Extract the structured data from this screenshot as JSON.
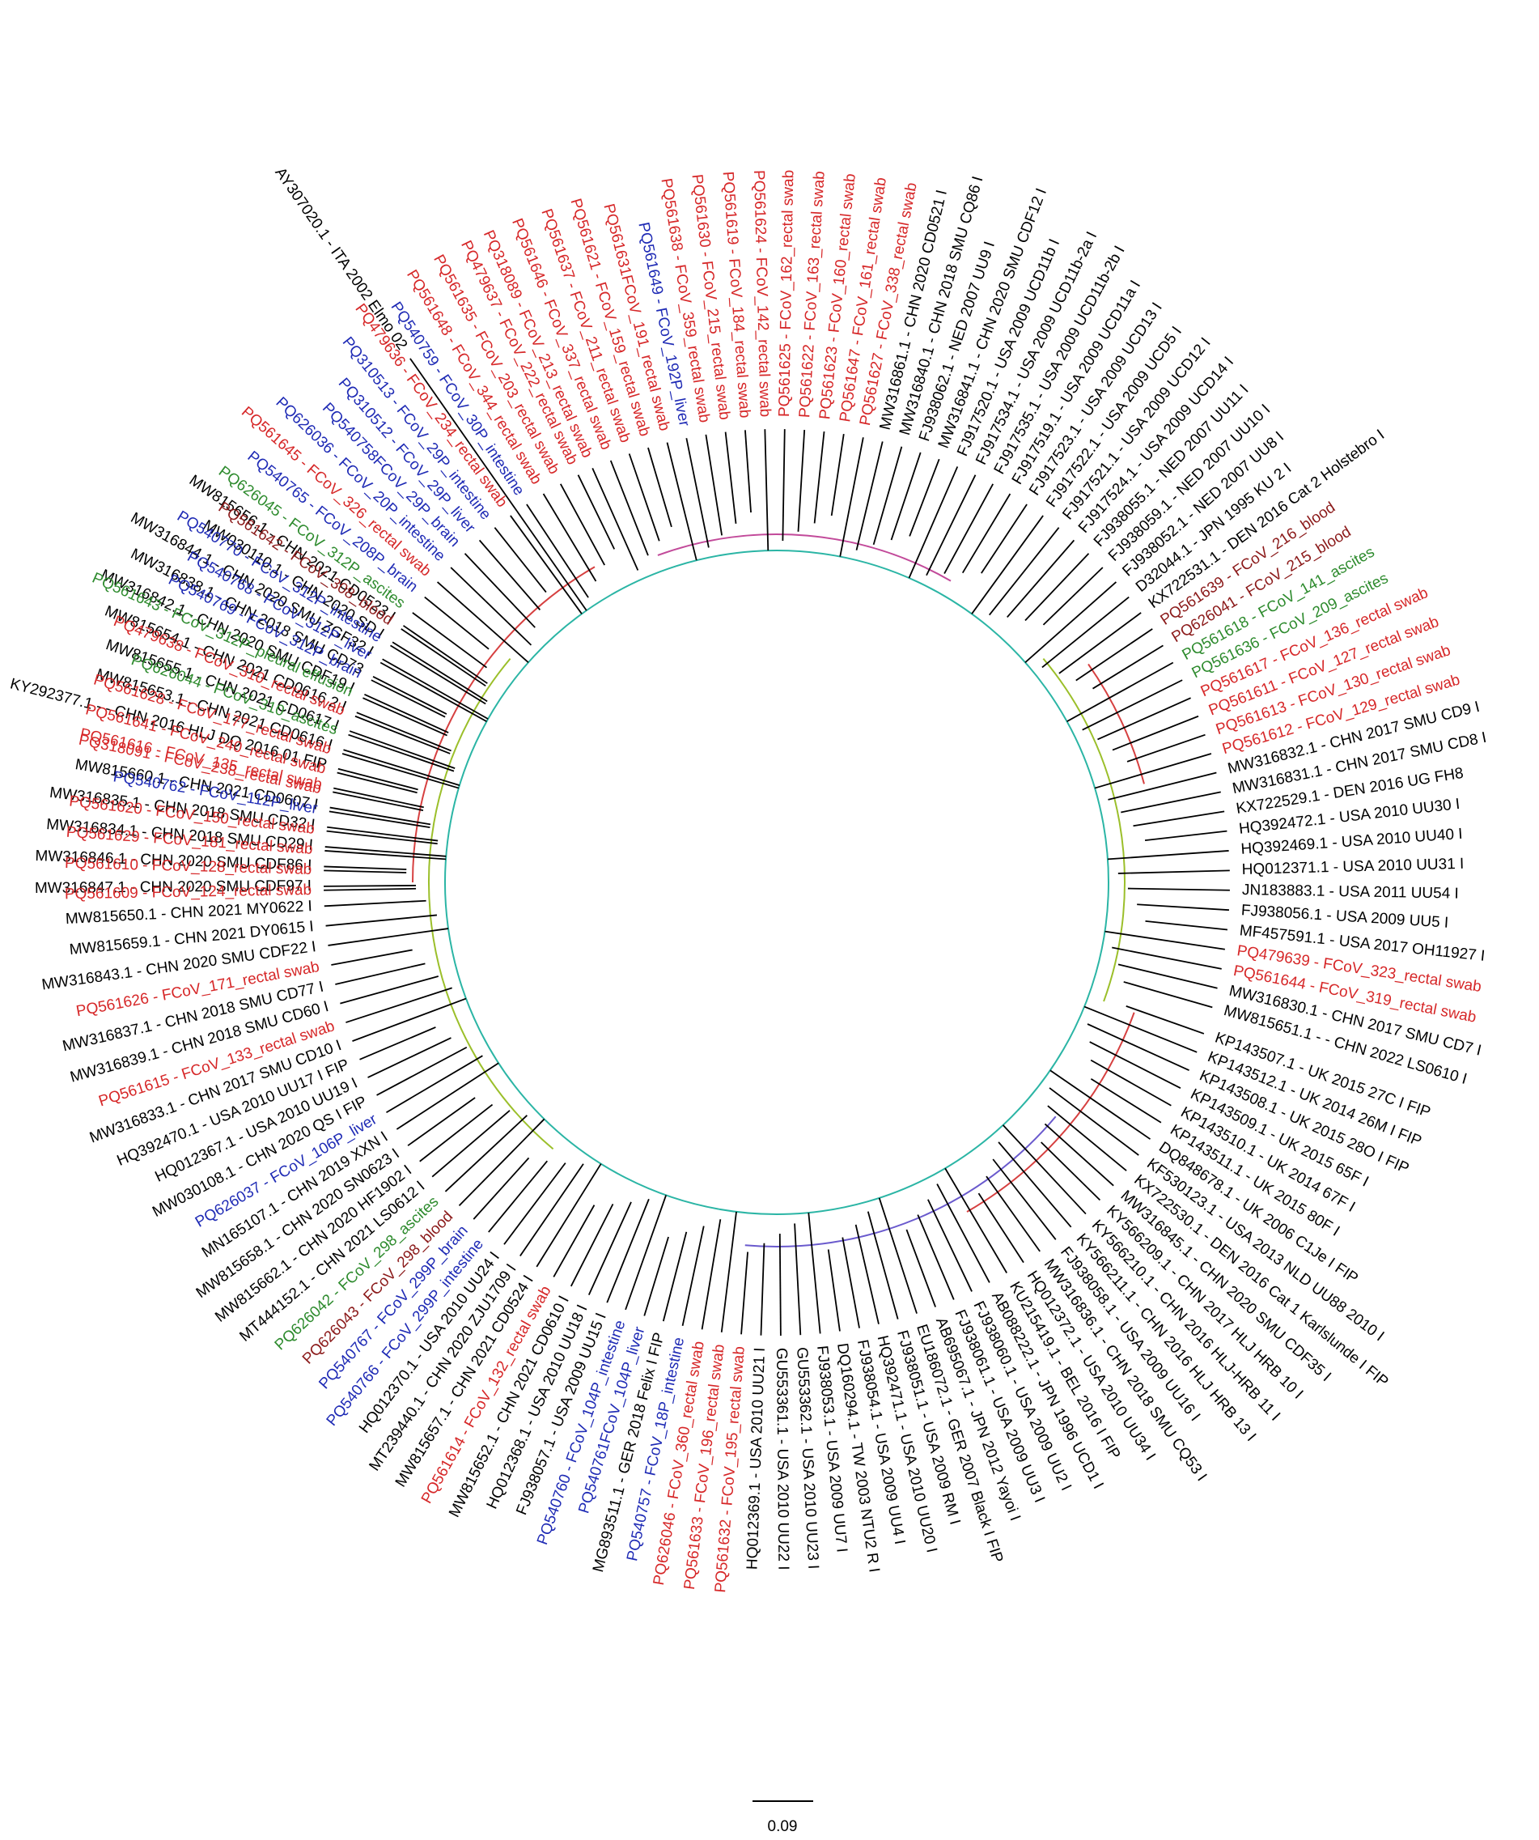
{
  "colors": {
    "rectal_swab": "#d62728",
    "organ": "#1f2bb5",
    "effusion": "#2e8b2e",
    "blood": "#8b1a1a",
    "reference": "#000000"
  },
  "scale_bar": {
    "label": "0.09"
  },
  "leaves": [
    {
      "label": "AY307020.1 - ITA 2002 Elmo 02",
      "group": "reference",
      "angle": -125
    },
    {
      "label": "PQ318089 - FCoV_213_rectal swab",
      "group": "rectal_swab",
      "angle": -114
    },
    {
      "label": "PQ561646 - FCoV_337_rectal swab",
      "group": "rectal_swab",
      "angle": -111.5
    },
    {
      "label": "PQ561637 - FCoV_211_rectal swab",
      "group": "rectal_swab",
      "angle": -109
    },
    {
      "label": "PQ561621 - FCoV_159_rectal swab",
      "group": "rectal_swab",
      "angle": -106.5
    },
    {
      "label": "PQ561631FCoV_191_rectal swab",
      "group": "rectal_swab",
      "angle": -104
    },
    {
      "label": "PQ561649 - FCoV_192P_liver",
      "group": "organ",
      "angle": -101.5
    },
    {
      "label": "PQ561638 - FCoV_359_rectal swab",
      "group": "rectal_swab",
      "angle": -99
    },
    {
      "label": "PQ561630 - FCoV_215_rectal swab",
      "group": "rectal_swab",
      "angle": -96.5
    },
    {
      "label": "PQ561619 - FCoV_184_rectal swab",
      "group": "rectal_swab",
      "angle": -94
    },
    {
      "label": "PQ561624 - FCoV_142_rectal swab",
      "group": "rectal_swab",
      "angle": -91.5
    },
    {
      "label": "PQ561625 - FCoV_162_rectal swab",
      "group": "rectal_swab",
      "angle": -89
    },
    {
      "label": "PQ561622 - FCoV_163_rectal swab",
      "group": "rectal_swab",
      "angle": -86.5
    },
    {
      "label": "PQ561623 - FCoV_160_rectal swab",
      "group": "rectal_swab",
      "angle": -84
    },
    {
      "label": "PQ561647 - FCoV_161_rectal swab",
      "group": "rectal_swab",
      "angle": -81.5
    },
    {
      "label": "PQ561627 - FCoV_338_rectal swab",
      "group": "rectal_swab",
      "angle": -79
    },
    {
      "label": "MW316861.1 - CHN 2020 CD0521 I",
      "group": "reference",
      "angle": -76.5
    },
    {
      "label": "MW316840.1 - CHN 2018 SMU CQ86 I",
      "group": "reference",
      "angle": -74
    },
    {
      "label": "FJ938062.1 - NED 2007 UU9 I",
      "group": "reference",
      "angle": -71.5
    },
    {
      "label": "MW316841.1 - CHN 2020 SMU CDF12 I",
      "group": "reference",
      "angle": -69
    },
    {
      "label": "FJ917520.1 - USA 2009 UCD11b I",
      "group": "reference",
      "angle": -66.5
    },
    {
      "label": "FJ917534.1 - USA 2009 UCD11b-2a I",
      "group": "reference",
      "angle": -64
    },
    {
      "label": "FJ917535.1 - USA 2009 UCD11b-2b I",
      "group": "reference",
      "angle": -61.5
    },
    {
      "label": "FJ917519.1 - USA 2009 UCD11a I",
      "group": "reference",
      "angle": -59
    },
    {
      "label": "FJ917523.1 - USA 2009 UCD13 I",
      "group": "reference",
      "angle": -56.5
    },
    {
      "label": "FJ917522.1 - USA 2009 UCD5 I",
      "group": "reference",
      "angle": -54
    },
    {
      "label": "FJ917521.1 - USA 2009 UCD12 I",
      "group": "reference",
      "angle": -51.5
    },
    {
      "label": "FJ917524.1 - USA 2009 UCD14 I",
      "group": "reference",
      "angle": -49
    },
    {
      "label": "FJ938055.1 - NED 2007 UU11 I",
      "group": "reference",
      "angle": -46.5
    },
    {
      "label": "FJ938059.1 - NED 2007 UU10 I",
      "group": "reference",
      "angle": -44
    },
    {
      "label": "FJ938052.1 - NED 2007 UU8 I",
      "group": "reference",
      "angle": -41.5
    },
    {
      "label": "D32044.1 - JPN 1995 KU 2 I",
      "group": "reference",
      "angle": -39
    },
    {
      "label": "KX722531.1 - DEN 2016 Cat 2 Holstebro I",
      "group": "reference",
      "angle": -36.5
    },
    {
      "label": "PQ561639 - FCoV_216_blood",
      "group": "blood",
      "angle": -34
    },
    {
      "label": "PQ626041 - FCoV_215_blood",
      "group": "blood",
      "angle": -31.5
    },
    {
      "label": "PQ561618 - FCoV_141_ascites",
      "group": "effusion",
      "angle": -29
    },
    {
      "label": "PQ561636 - FCoV_209_ascites",
      "group": "effusion",
      "angle": -26.5
    },
    {
      "label": "PQ561617 - FCoV_136_rectal swab",
      "group": "rectal_swab",
      "angle": -24
    },
    {
      "label": "PQ561611 - FCoV_127_rectal swab",
      "group": "rectal_swab",
      "angle": -21.5
    },
    {
      "label": "PQ561613 - FCoV_130_rectal swab",
      "group": "rectal_swab",
      "angle": -19
    },
    {
      "label": "PQ561612 - FCoV_129_rectal swab",
      "group": "rectal_swab",
      "angle": -16.5
    },
    {
      "label": "MW316832.1 - CHN 2017 SMU CD9 I",
      "group": "reference",
      "angle": -14
    },
    {
      "label": "MW316831.1 - CHN 2017 SMU CD8 I",
      "group": "reference",
      "angle": -11.5
    },
    {
      "label": "KX722529.1 - DEN 2016 UG FH8",
      "group": "reference",
      "angle": -9
    },
    {
      "label": "HQ392472.1 - USA 2010 UU30 I",
      "group": "reference",
      "angle": -6.5
    },
    {
      "label": "HQ392469.1 - USA 2010 UU40 I",
      "group": "reference",
      "angle": -4
    },
    {
      "label": "HQ012371.1 - USA 2010 UU31 I",
      "group": "reference",
      "angle": -1.5
    },
    {
      "label": "JN183883.1 - USA 2011 UU54 I",
      "group": "reference",
      "angle": 1
    },
    {
      "label": "FJ938056.1 - USA 2009 UU5 I",
      "group": "reference",
      "angle": 3.5
    },
    {
      "label": "MF457591.1 - USA 2017 OH11927 I",
      "group": "reference",
      "angle": 6
    },
    {
      "label": "PQ479639 - FCoV_323_rectal swab",
      "group": "rectal_swab",
      "angle": 8.5
    },
    {
      "label": "PQ561644 - FCoV_319_rectal swab",
      "group": "rectal_swab",
      "angle": 11
    },
    {
      "label": "MW316830.1 - CHN 2017 SMU CD7 I",
      "group": "reference",
      "angle": 13.5
    },
    {
      "label": "MW815651.1 - - CHN 2022 LS0610 I",
      "group": "reference",
      "angle": 16
    },
    {
      "label": "KP143507.1 - UK 2015 27C I FIP",
      "group": "reference",
      "angle": 19.5
    },
    {
      "label": "KP143512.1 - UK 2014 26M I FIP",
      "group": "reference",
      "angle": 22
    },
    {
      "label": "KP143508.1 - UK 2015 28O I FIP",
      "group": "reference",
      "angle": 24.5
    },
    {
      "label": "KP143509.1 - UK 2015 65F I",
      "group": "reference",
      "angle": 27
    },
    {
      "label": "KP143510.1 - UK 2014 67F I",
      "group": "reference",
      "angle": 29.5
    },
    {
      "label": "KP143511.1 - UK 2015 80F I",
      "group": "reference",
      "angle": 32
    },
    {
      "label": "DQ848678.1 - UK 2006 C1Je I FIP",
      "group": "reference",
      "angle": 34.5
    },
    {
      "label": "KF530123.1 - USA 2013 NLD UU88 2010 I",
      "group": "reference",
      "angle": 37
    },
    {
      "label": "KX722530.1 - DEN 2016 Cat 1 Karlslunde I FIP",
      "group": "reference",
      "angle": 39.5
    },
    {
      "label": "MW316845.1 - CHN 2020 SMU CDF35 I",
      "group": "reference",
      "angle": 42
    },
    {
      "label": "KY566209.1 - CHN 2017 HLJ HRB 10 I",
      "group": "reference",
      "angle": 44.5
    },
    {
      "label": "KY566210.1 - CHN 2016 HLJ-HRB 11 I",
      "group": "reference",
      "angle": 47
    },
    {
      "label": "KY566211.1 - CHN 2016 HLJ HRB 13 I",
      "group": "reference",
      "angle": 49.5
    },
    {
      "label": "FJ938058.1 - USA 2009 UU16 I",
      "group": "reference",
      "angle": 52
    },
    {
      "label": "MW316836.1 - CHN 2018 SMU CQ53 I",
      "group": "reference",
      "angle": 54.5
    },
    {
      "label": "HQ012372.1 - USA 2010 UU34 I",
      "group": "reference",
      "angle": 57
    },
    {
      "label": "KU215419.1 - BEL 2016 I FIP",
      "group": "reference",
      "angle": 59.5
    },
    {
      "label": "AB088222.1 - JPN 1996 UCD1 I",
      "group": "reference",
      "angle": 62
    },
    {
      "label": "FJ938060.1 - USA 2009 UU2 I",
      "group": "reference",
      "angle": 64.5
    },
    {
      "label": "FJ938061.1 - USA 2009 UU3 I",
      "group": "reference",
      "angle": 67
    },
    {
      "label": "AB695067.1 - JPN 2012 Yayoi I",
      "group": "reference",
      "angle": 69.5
    },
    {
      "label": "EU186072.1 - GER 2007 Black I FIP",
      "group": "reference",
      "angle": 72
    },
    {
      "label": "FJ938051.1 - USA 2009 RM I",
      "group": "reference",
      "angle": 74.5
    },
    {
      "label": "HQ392471.1 - USA 2010 UU20 I",
      "group": "reference",
      "angle": 77
    },
    {
      "label": "FJ938054.1 - USA 2009 UU4 I",
      "group": "reference",
      "angle": 79.5
    },
    {
      "label": "DQ160294.1 - TW 2003 NTU2 R I",
      "group": "reference",
      "angle": 82
    },
    {
      "label": "FJ938053.1 - USA 2009 UU7 I",
      "group": "reference",
      "angle": 84.5
    },
    {
      "label": "GU553362.1 - USA 2010 UU23 I",
      "group": "reference",
      "angle": 87
    },
    {
      "label": "GU553361.1 - USA 2010 UU22 I",
      "group": "reference",
      "angle": 89.5
    },
    {
      "label": "HQ012369.1 - USA 2010 UU21 I",
      "group": "reference",
      "angle": 92
    },
    {
      "label": "PQ561632 - FCoV_195_rectal swab",
      "group": "rectal_swab",
      "angle": 94.5
    },
    {
      "label": "PQ561633 - FCoV_196_rectal swab",
      "group": "rectal_swab",
      "angle": 97
    },
    {
      "label": "PQ626046 - FCoV_360_rectal swab",
      "group": "rectal_swab",
      "angle": 99.5
    },
    {
      "label": "PQ540757 - FCoV_18P_intestine",
      "group": "organ",
      "angle": 102
    },
    {
      "label": "MG893511.1 - GER 2018 Felix I FIP",
      "group": "reference",
      "angle": 104.5
    },
    {
      "label": "PQ540761FCoV_104P_liver",
      "group": "organ",
      "angle": 107
    },
    {
      "label": "PQ540760 - FCoV_104P_intestine",
      "group": "organ",
      "angle": 109.5
    },
    {
      "label": "FJ938057.1 - USA 2009 UU15 I",
      "group": "reference",
      "angle": 112
    },
    {
      "label": "HQ012368.1 - USA 2010 UU18 I",
      "group": "reference",
      "angle": 114.5
    },
    {
      "label": "MW815652.1 - CHN 2021 CD0610 I",
      "group": "reference",
      "angle": 117
    },
    {
      "label": "PQ561614 - FCoV_132_rectal swab",
      "group": "rectal_swab",
      "angle": 119.5
    },
    {
      "label": "MW815657.1 - CHN 2021 CD0524 I",
      "group": "reference",
      "angle": 122
    },
    {
      "label": "MT239440.1 - CHN 2020 ZJU1709 I",
      "group": "reference",
      "angle": 124.5
    },
    {
      "label": "HQ012370.1 - USA 2010 UU24 I",
      "group": "reference",
      "angle": 127
    },
    {
      "label": "PQ540766 - FCoV_299P_intestine",
      "group": "organ",
      "angle": 129.5
    },
    {
      "label": "PQ540767 - FCoV_299P_brain",
      "group": "organ",
      "angle": 132
    },
    {
      "label": "PQ626043 - FCoV_298_blood",
      "group": "blood",
      "angle": 134.5
    },
    {
      "label": "PQ626042 - FCoV_298_ascites",
      "group": "effusion",
      "angle": 137
    },
    {
      "label": "MT444152.1 - CHN 2021 LS0612 I",
      "group": "reference",
      "angle": 139.5
    },
    {
      "label": "MW815662.1 - CHN 2020 HF1902 I",
      "group": "reference",
      "angle": 142
    },
    {
      "label": "MW815658.1 - CHN 2020 SN0623 I",
      "group": "reference",
      "angle": 144.5
    },
    {
      "label": "MN165107.1 - CHN 2019 XXN I",
      "group": "reference",
      "angle": 147
    },
    {
      "label": "PQ626037 - FCoV_106P_liver",
      "group": "organ",
      "angle": 149.5
    },
    {
      "label": "MW030108.1 - CHN 2020 QS I FIP",
      "group": "reference",
      "angle": 152
    },
    {
      "label": "HQ012367.1 - USA 2010 UU19 I",
      "group": "reference",
      "angle": 154.5
    },
    {
      "label": "HQ392470.1 - USA 2010 UU17 I FIP",
      "group": "reference",
      "angle": 157
    },
    {
      "label": "MW316833.1 - CHN 2017 SMU CD10 I",
      "group": "reference",
      "angle": 159.5
    },
    {
      "label": "PQ561615 - FCoV_133_rectal swab",
      "group": "rectal_swab",
      "angle": 162
    },
    {
      "label": "MW316839.1 - CHN 2018 SMU CD60 I",
      "group": "reference",
      "angle": 164.5
    },
    {
      "label": "MW316837.1 - CHN 2018 SMU CD77 I",
      "group": "reference",
      "angle": 167
    },
    {
      "label": "PQ561626 - FCoV_171_rectal swab",
      "group": "rectal_swab",
      "angle": 169.5
    },
    {
      "label": "MW316843.1 - CHN 2020 SMU CDF22 I",
      "group": "reference",
      "angle": 172
    },
    {
      "label": "MW815659.1 - CHN 2021 DY0615 I",
      "group": "reference",
      "angle": 174.5
    },
    {
      "label": "MW815650.1 - CHN 2021 MY0622 I",
      "group": "reference",
      "angle": 177
    },
    {
      "label": "MW316847.1 - CHN 2020 SMU CDF97 I",
      "group": "reference",
      "angle": 179.5
    },
    {
      "label": "MW316846.1 - CHN 2020 SMU CDF86 I",
      "group": "reference",
      "angle": 182
    },
    {
      "label": "MW316834.1 - CHN 2018 SMU CD29 I",
      "group": "reference",
      "angle": 184.5
    },
    {
      "label": "MW316835.1 - CHN 2018 SMU CD32 I",
      "group": "reference",
      "angle": 187
    },
    {
      "label": "MW815660.1 - CHN 2021 CD0607 I",
      "group": "reference",
      "angle": 189.5
    },
    {
      "label": "PQ561616 - FCoV_135_rectal swab",
      "group": "rectal_swab",
      "angle": 192
    },
    {
      "label": "KY292377.1 - - CHN 2016 HLJ DQ 2016 01 FIP",
      "group": "reference",
      "angle": 194.5
    },
    {
      "label": "MW815653.1 - CHN 2021 CD0616 I",
      "group": "reference",
      "angle": 197
    },
    {
      "label": "MW815655.1 - CHN 2021 CD0617 I",
      "group": "reference",
      "angle": 199.5
    },
    {
      "label": "MW815654.1 - CHN 2021 CD0616 2 I",
      "group": "reference",
      "angle": 202
    },
    {
      "label": "MW316842.1 - CHN 2020 SMU CDF19 I",
      "group": "reference",
      "angle": 204.5
    },
    {
      "label": "MW316838.1 - CHN 2018 SMU CD73",
      "group": "reference",
      "angle": 207
    },
    {
      "label": "MW316844.1 - CHN 2020 SMU ZGF32 I",
      "group": "reference",
      "angle": 209.5
    },
    {
      "label": "MW030110.1 - CHN 2020 SD I",
      "group": "reference",
      "angle": 212
    },
    {
      "label": "MW815656.1 - CHN 2021 CD0523 I",
      "group": "reference",
      "angle": 214.5
    },
    {
      "label": "PQ561609 - FCoV_124_rectal swab",
      "group": "rectal_swab",
      "angle": 179
    },
    {
      "label": "PQ561610 - FCoV_128_rectal swab",
      "group": "rectal_swab",
      "angle": 181.5
    },
    {
      "label": "PQ561629 - FCoV_181_rectal swab",
      "group": "rectal_swab",
      "angle": 184
    },
    {
      "label": "PQ561620 - FCoV_150_rectal swab",
      "group": "rectal_swab",
      "angle": 186.5
    },
    {
      "label": "PQ540762 - FCoV_112P_liver",
      "group": "organ",
      "angle": 189
    },
    {
      "label": "PQ318091 - FCoV_238_rectal swab",
      "group": "rectal_swab",
      "angle": 191.5
    },
    {
      "label": "PQ561641 - FCoV_240_rectal swab",
      "group": "rectal_swab",
      "angle": 194
    },
    {
      "label": "PQ561628 - FCoV_177_rectal swab",
      "group": "rectal_swab",
      "angle": 196.5
    },
    {
      "label": "PQ626044 - FCoV_310_ascites",
      "group": "effusion",
      "angle": 199
    },
    {
      "label": "PQ479638 - FCoV_310_rectal swab",
      "group": "rectal_swab",
      "angle": 201.5
    },
    {
      "label": "PQ561643 - FCoV_312P_pleural effusion",
      "group": "effusion",
      "angle": 204
    },
    {
      "label": "PQ540769 - FCoV_312P_brain",
      "group": "organ",
      "angle": 206.5
    },
    {
      "label": "PQ540768 - FCoV_312P_liver",
      "group": "organ",
      "angle": 209
    },
    {
      "label": "PQ540770 - FCoV_312P_intestine",
      "group": "organ",
      "angle": 211.5
    },
    {
      "label": "PQ561642 - FCoV_308_blood",
      "group": "blood",
      "angle": 214
    },
    {
      "label": "PQ626045 - FCoV_312P_ascites",
      "group": "effusion",
      "angle": 216.5
    },
    {
      "label": "PQ540765 - FCoV_208P_brain",
      "group": "organ",
      "angle": 219
    },
    {
      "label": "PQ561645 - FCoV_326_rectal swab",
      "group": "rectal_swab",
      "angle": 221.5
    },
    {
      "label": "PQ626036 - FCoV_20P_intestine",
      "group": "organ",
      "angle": 224
    },
    {
      "label": "PQ540758FCoV_29P_brain",
      "group": "organ",
      "angle": 226.5
    },
    {
      "label": "PQ310512 - FCoV_29P_liver",
      "group": "organ",
      "angle": 229
    },
    {
      "label": "PQ310513 - FCoV_29P_intestine",
      "group": "organ",
      "angle": 231.5
    },
    {
      "label": "PQ479636 - FCoV_234_rectal swab",
      "group": "rectal_swab",
      "angle": 234
    },
    {
      "label": "PQ540759 - FCoV_30P_intestine",
      "group": "organ",
      "angle": 236.5
    },
    {
      "label": "PQ561648 - FCoV_344_rectal swab",
      "group": "rectal_swab",
      "angle": 239
    },
    {
      "label": "PQ561635 - FCoV_203_rectal swab",
      "group": "rectal_swab",
      "angle": 241.5
    },
    {
      "label": "PQ479637 - FCoV_222_rectal swab",
      "group": "rectal_swab",
      "angle": 244
    }
  ]
}
